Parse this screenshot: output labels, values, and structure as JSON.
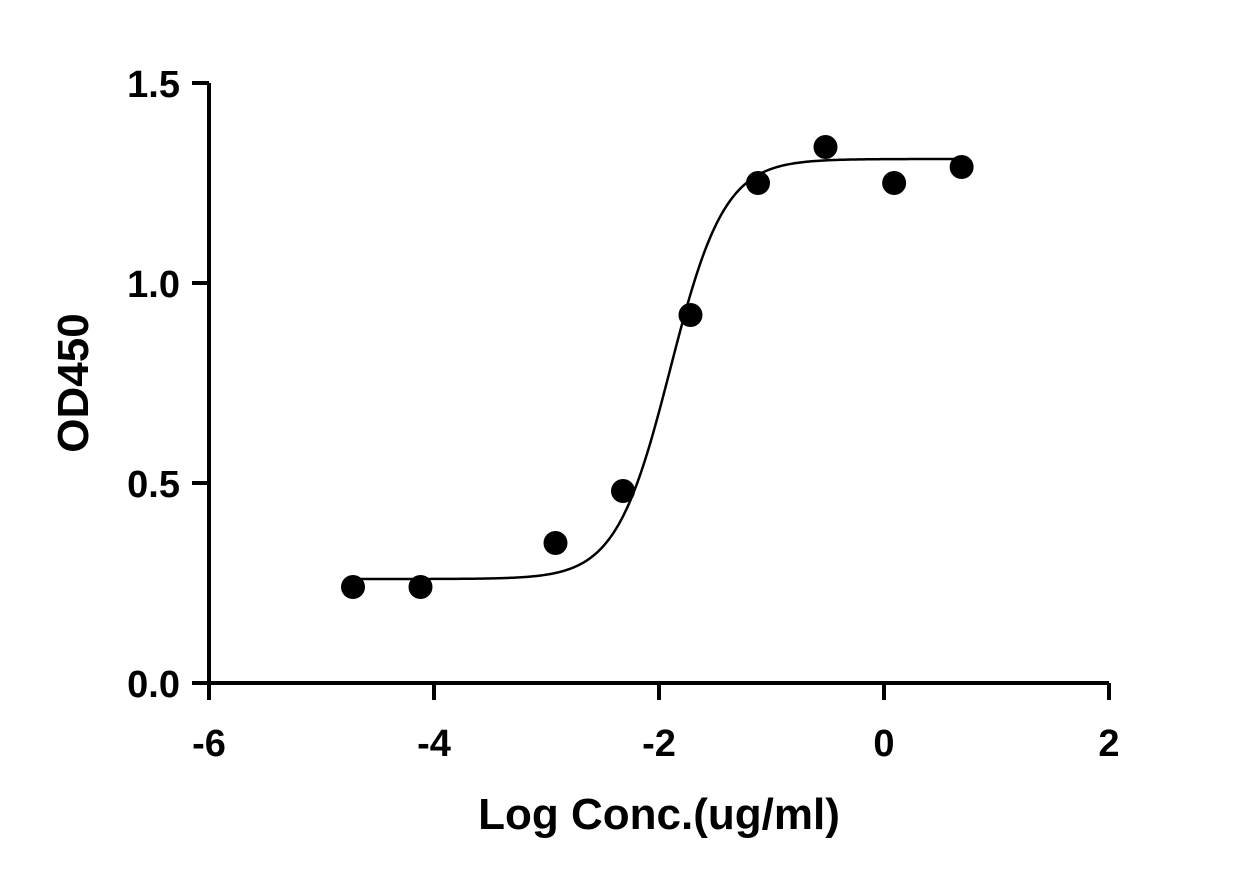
{
  "chart_data": {
    "type": "scatter",
    "title": "",
    "xlabel": "Log Conc.(ug/ml)",
    "ylabel": "OD450",
    "xlim": [
      -6,
      2
    ],
    "ylim": [
      0,
      1.5
    ],
    "x_ticks": [
      "-6",
      "-4",
      "-2",
      "0",
      "2"
    ],
    "y_ticks": [
      "0.0",
      "0.5",
      "1.0",
      "1.5"
    ],
    "grid": false,
    "legend": "none",
    "series": [
      {
        "points": [
          {
            "x": -4.72,
            "y": 0.24
          },
          {
            "x": -4.12,
            "y": 0.24
          },
          {
            "x": -2.92,
            "y": 0.35
          },
          {
            "x": -2.32,
            "y": 0.48
          },
          {
            "x": -1.72,
            "y": 0.92
          },
          {
            "x": -1.12,
            "y": 1.25
          },
          {
            "x": -0.52,
            "y": 1.34
          },
          {
            "x": 0.09,
            "y": 1.25
          },
          {
            "x": 0.69,
            "y": 1.29
          }
        ]
      }
    ],
    "fit": {
      "model": "four-parameter logistic",
      "bottom": 0.26,
      "top": 1.31,
      "log_ec50": -1.9,
      "hill_slope": 1.8,
      "x_range": [
        -4.72,
        0.69
      ]
    },
    "colors": {
      "points": "#000000",
      "curve": "#000000",
      "axes": "#000000"
    }
  }
}
